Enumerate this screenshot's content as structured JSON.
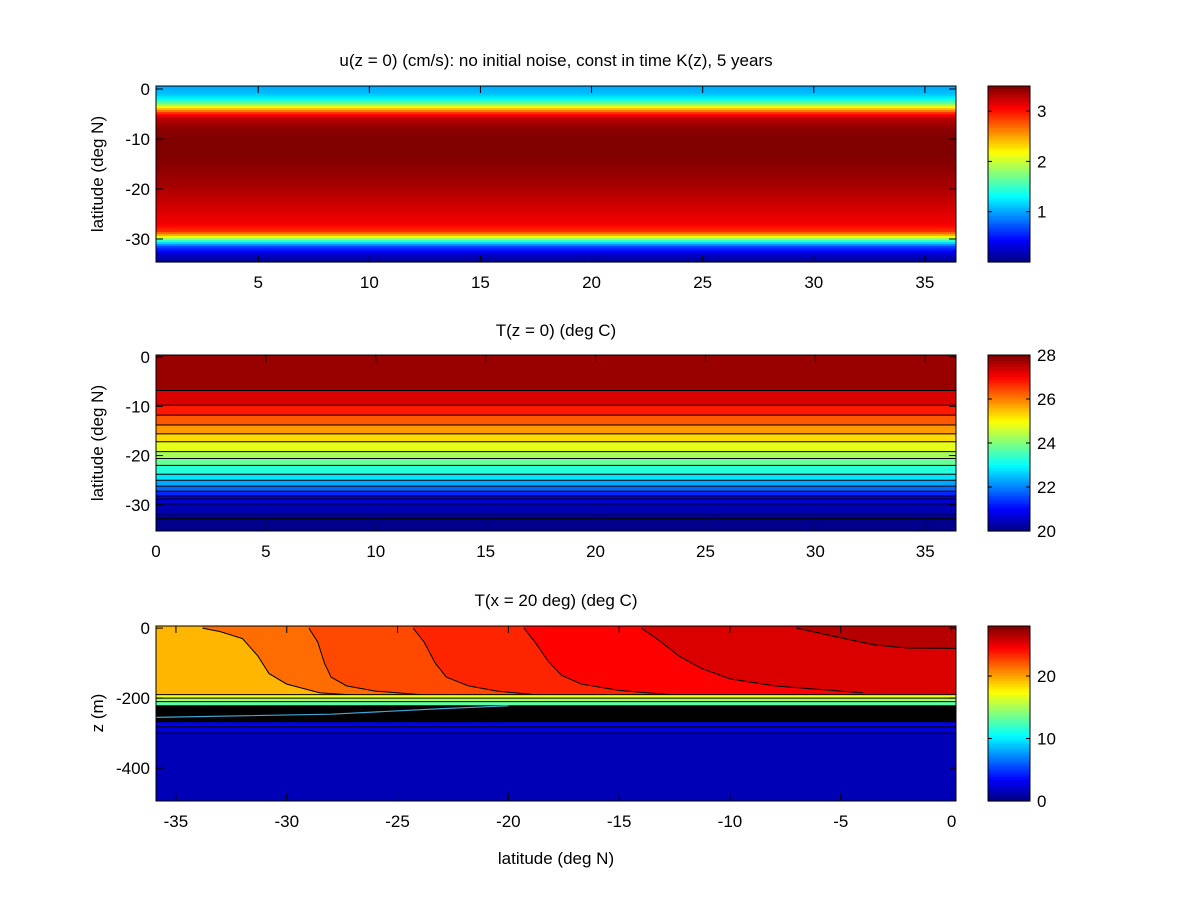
{
  "chart_data": [
    {
      "type": "heatmap",
      "title": "u(z = 0) (cm/s): no initial noise, const in time K(z), 5 years",
      "xlabel": "",
      "ylabel": "latitude (deg N)",
      "xlim": [
        0.4,
        36.4
      ],
      "ylim": [
        -34.6,
        0.6
      ],
      "xticks": [
        5,
        10,
        15,
        20,
        25,
        30,
        35
      ],
      "yticks": [
        0,
        -10,
        -20,
        -30
      ],
      "colorbar": {
        "range": [
          0,
          3.5
        ],
        "ticks": [
          1,
          2,
          3
        ]
      },
      "description": "Zonal velocity uniform in x; varies with latitude only",
      "profile_lat": [
        0.6,
        -1,
        -2,
        -3,
        -4,
        -5,
        -6,
        -8,
        -10,
        -13,
        -16,
        -20,
        -24,
        -27,
        -28.5,
        -29.5,
        -30.5,
        -31.5,
        -33,
        -34.6
      ],
      "profile_value": [
        1.0,
        1.1,
        1.3,
        1.7,
        2.4,
        3.0,
        3.3,
        3.45,
        3.5,
        3.5,
        3.45,
        3.35,
        3.2,
        3.1,
        2.9,
        2.3,
        1.4,
        0.7,
        0.3,
        0.05
      ]
    },
    {
      "type": "heatmap",
      "title": "T(z = 0) (deg C)",
      "xlabel": "",
      "ylabel": "latitude (deg N)",
      "xlim": [
        0,
        36.4
      ],
      "ylim": [
        -35.3,
        0.4
      ],
      "xticks": [
        0,
        5,
        10,
        15,
        20,
        25,
        30,
        35
      ],
      "yticks": [
        0,
        -10,
        -20,
        -30
      ],
      "colorbar": {
        "range": [
          20,
          28
        ],
        "ticks": [
          20,
          22,
          24,
          26,
          28
        ]
      },
      "description": "Filled contours of surface temperature, uniform in x",
      "band_edges_lat": [
        0.4,
        -6.8,
        -9.8,
        -11.8,
        -13.8,
        -15.6,
        -17.2,
        -19.2,
        -20.6,
        -22.0,
        -23.8,
        -25.0,
        -26.2,
        -27.2,
        -28.2,
        -28.8,
        -29.8,
        -31.8,
        -32.8,
        -35.3
      ],
      "band_values": [
        27.8,
        27.3,
        26.8,
        26.3,
        25.8,
        25.3,
        24.8,
        24.3,
        23.8,
        23.3,
        22.8,
        22.3,
        21.8,
        21.3,
        20.9,
        20.6,
        20.4,
        20.2,
        20.1
      ]
    },
    {
      "type": "heatmap",
      "title": "T(x = 20 deg)  (deg C)",
      "xlabel": "latitude (deg N)",
      "ylabel": "z (m)",
      "xlim": [
        -35.9,
        0.2
      ],
      "ylim": [
        -494,
        6
      ],
      "xticks": [
        -35,
        -30,
        -25,
        -20,
        -15,
        -10,
        -5,
        0
      ],
      "yticks": [
        0,
        -200,
        -400
      ],
      "colorbar": {
        "range": [
          0,
          28
        ],
        "ticks": [
          0,
          10,
          20
        ]
      },
      "description": "Filled contours of temperature in a latitude-depth section",
      "isotherms": [
        {
          "value": 21,
          "lat": [
            -33.8,
            -33.0,
            -32.0,
            -31.3,
            -30.8,
            -30.0,
            -28.5,
            -26.0
          ],
          "z": [
            0,
            -10,
            -30,
            -80,
            -130,
            -160,
            -185,
            -195
          ]
        },
        {
          "value": 22,
          "lat": [
            -29.0,
            -28.6,
            -28.3,
            -28.0,
            -27.3,
            -26.0,
            -23.0
          ],
          "z": [
            0,
            -40,
            -100,
            -140,
            -165,
            -180,
            -195
          ]
        },
        {
          "value": 23,
          "lat": [
            -24.3,
            -23.8,
            -23.3,
            -22.8,
            -21.8,
            -20.5,
            -18.0
          ],
          "z": [
            0,
            -40,
            -100,
            -140,
            -165,
            -180,
            -195
          ]
        },
        {
          "value": 24,
          "lat": [
            -19.3,
            -18.8,
            -18.2,
            -17.6,
            -16.7,
            -15.0,
            -12.0
          ],
          "z": [
            0,
            -40,
            -95,
            -135,
            -160,
            -178,
            -194
          ]
        },
        {
          "value": 25,
          "lat": [
            -14.0,
            -13.2,
            -12.3,
            -11.3,
            -10.0,
            -8.0,
            -4.0
          ],
          "z": [
            0,
            -35,
            -80,
            -115,
            -145,
            -165,
            -185
          ]
        },
        {
          "value": 26,
          "lat": [
            -7.0,
            -5.2,
            -3.5,
            -2.0,
            0.2
          ],
          "z": [
            0,
            -25,
            -48,
            -57,
            -58
          ]
        }
      ],
      "region_values": [
        19.5,
        21.5,
        22.5,
        23.5,
        24.5,
        25.5,
        26.5
      ],
      "thermocline_layers": [
        {
          "ztop": -190,
          "zbot": -200,
          "value": 17
        },
        {
          "ztop": -200,
          "zbot": -210,
          "value": 15
        },
        {
          "ztop": -210,
          "zbot": -222,
          "value": 13
        },
        {
          "ztop": -222,
          "zbot": -268,
          "value": -1
        },
        {
          "ztop": -268,
          "zbot": -282,
          "value": 3.5
        },
        {
          "ztop": -282,
          "zbot": -300,
          "value": 2.5
        },
        {
          "ztop": -300,
          "zbot": -494,
          "value": 1.5
        }
      ]
    }
  ]
}
